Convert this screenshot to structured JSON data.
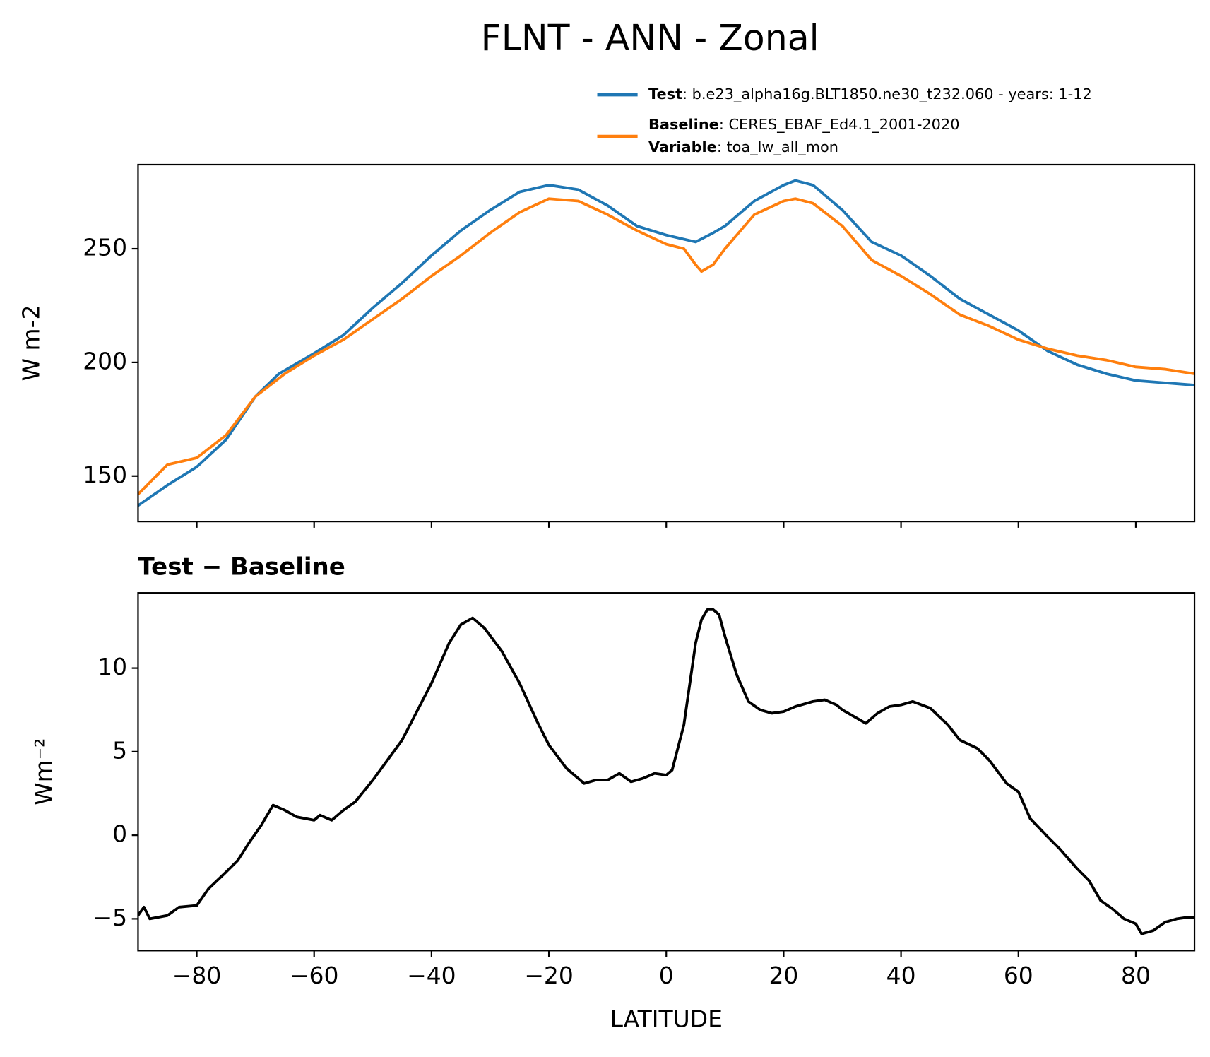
{
  "title": "FLNT - ANN - Zonal",
  "chart_data": [
    {
      "type": "line",
      "ylabel": "W m-2",
      "xlim": [
        -90,
        90
      ],
      "ylim": [
        130,
        287
      ],
      "xticks": [
        -80,
        -60,
        -40,
        -20,
        0,
        20,
        40,
        60,
        80
      ],
      "yticks": [
        150,
        200,
        250
      ],
      "series": [
        {
          "name": "Test",
          "label": ": b.e23_alpha16g.BLT1850.ne30_t232.060 - years: 1-12",
          "color": "#1f77b4",
          "x": [
            -90,
            -85,
            -80,
            -75,
            -70,
            -66,
            -60,
            -55,
            -50,
            -45,
            -40,
            -35,
            -30,
            -25,
            -20,
            -15,
            -10,
            -5,
            0,
            5,
            8,
            10,
            15,
            20,
            22,
            25,
            30,
            35,
            40,
            45,
            50,
            55,
            60,
            65,
            70,
            75,
            80,
            85,
            90
          ],
          "values": [
            137,
            146,
            154,
            166,
            185,
            195,
            204,
            212,
            224,
            235,
            247,
            258,
            267,
            275,
            278,
            276,
            269,
            260,
            256,
            253,
            257,
            260,
            271,
            278,
            280,
            278,
            267,
            253,
            247,
            238,
            228,
            221,
            214,
            205,
            199,
            195,
            192,
            191,
            190
          ]
        },
        {
          "name": "Baseline",
          "label": ": CERES_EBAF_Ed4.1_2001-2020",
          "extra_name": "Variable",
          "extra_label": ": toa_lw_all_mon",
          "color": "#ff7f0e",
          "x": [
            -90,
            -85,
            -80,
            -75,
            -70,
            -65,
            -60,
            -55,
            -50,
            -45,
            -40,
            -35,
            -30,
            -25,
            -20,
            -15,
            -10,
            -5,
            0,
            3,
            5,
            6,
            8,
            10,
            15,
            20,
            22,
            25,
            30,
            35,
            40,
            45,
            50,
            55,
            60,
            65,
            70,
            75,
            80,
            85,
            90
          ],
          "values": [
            142,
            155,
            158,
            168,
            185,
            195,
            203,
            210,
            219,
            228,
            238,
            247,
            257,
            266,
            272,
            271,
            265,
            258,
            252,
            250,
            243,
            240,
            243,
            250,
            265,
            271,
            272,
            270,
            260,
            245,
            238,
            230,
            221,
            216,
            210,
            206,
            203,
            201,
            198,
            197,
            195
          ]
        }
      ]
    },
    {
      "type": "line",
      "title": "Test − Baseline",
      "xlabel": "LATITUDE",
      "ylabel": "Wm⁻²",
      "xlim": [
        -90,
        90
      ],
      "ylim": [
        -6.9,
        14.5
      ],
      "xticks": [
        {
          "value": -80,
          "label": "−80"
        },
        {
          "value": -60,
          "label": "−60"
        },
        {
          "value": -40,
          "label": "−40"
        },
        {
          "value": -20,
          "label": "−20"
        },
        0,
        20,
        40,
        60,
        80
      ],
      "yticks": [
        {
          "value": -5,
          "label": "−5"
        },
        0,
        5,
        10
      ],
      "series": [
        {
          "color": "#000000",
          "x": [
            -90,
            -89,
            -88,
            -85,
            -83,
            -80,
            -78,
            -75,
            -73,
            -71,
            -69,
            -67,
            -65,
            -63,
            -60,
            -59,
            -57,
            -55,
            -53,
            -50,
            -45,
            -40,
            -37,
            -35,
            -33,
            -31,
            -28,
            -25,
            -22,
            -20,
            -17,
            -14,
            -12,
            -10,
            -8,
            -6,
            -4,
            -2,
            0,
            1,
            3,
            5,
            6,
            7,
            8,
            9,
            10,
            12,
            14,
            16,
            18,
            20,
            22,
            25,
            27,
            29,
            30,
            32,
            34,
            36,
            38,
            40,
            42,
            45,
            48,
            50,
            53,
            55,
            58,
            60,
            62,
            65,
            67,
            70,
            72,
            74,
            76,
            78,
            80,
            81,
            83,
            85,
            87,
            89,
            90
          ],
          "values": [
            -4.8,
            -4.3,
            -5.0,
            -4.8,
            -4.3,
            -4.2,
            -3.2,
            -2.2,
            -1.5,
            -0.4,
            0.6,
            1.8,
            1.5,
            1.1,
            0.9,
            1.2,
            0.9,
            1.5,
            2.0,
            3.3,
            5.7,
            9.1,
            11.5,
            12.6,
            13.0,
            12.4,
            11.0,
            9.1,
            6.8,
            5.4,
            4.0,
            3.1,
            3.3,
            3.3,
            3.7,
            3.2,
            3.4,
            3.7,
            3.6,
            3.9,
            6.6,
            11.5,
            12.9,
            13.5,
            13.5,
            13.2,
            11.9,
            9.6,
            8.0,
            7.5,
            7.3,
            7.4,
            7.7,
            8.0,
            8.1,
            7.8,
            7.5,
            7.1,
            6.7,
            7.3,
            7.7,
            7.8,
            8.0,
            7.6,
            6.6,
            5.7,
            5.2,
            4.5,
            3.1,
            2.6,
            1.0,
            -0.1,
            -0.8,
            -2.0,
            -2.7,
            -3.9,
            -4.4,
            -5.0,
            -5.3,
            -5.9,
            -5.7,
            -5.2,
            -5.0,
            -4.9,
            -4.9
          ]
        }
      ]
    }
  ]
}
